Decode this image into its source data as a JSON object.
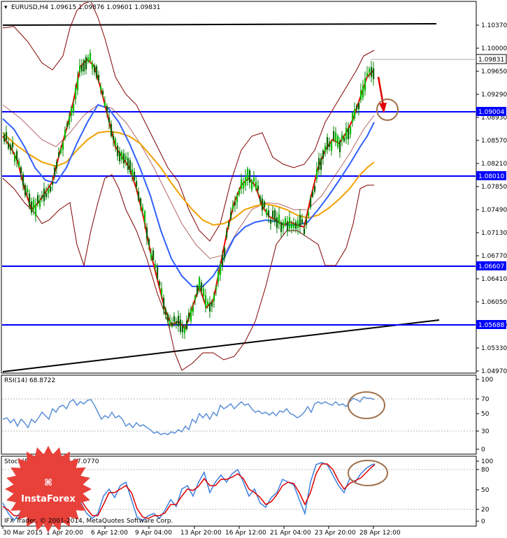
{
  "header": {
    "main": "EURUSD,H4  1.09615 1.09876 1.09601 1.09831",
    "rsi": "RSI(14) 68.8722",
    "stoch": "Stoch(5,3,3) 85.0496 87.0770"
  },
  "price_axis": {
    "ticks": [
      "1.10370",
      "1.10000",
      "1.09650",
      "1.09290",
      "1.08930",
      "1.08570",
      "1.08210",
      "1.07850",
      "1.07490",
      "1.07130",
      "1.06770",
      "1.06410",
      "1.06050",
      "1.05690",
      "1.05330",
      "1.04970"
    ],
    "current_price": "1.09831"
  },
  "levels": [
    {
      "label": "1.09004"
    },
    {
      "label": "1.08010"
    },
    {
      "label": "1.06607"
    },
    {
      "label": "1.05688"
    }
  ],
  "rsi_axis": {
    "ticks": [
      "100",
      "70",
      "50",
      "30",
      "0"
    ]
  },
  "stoch_axis": {
    "ticks": [
      "100",
      "80",
      "50",
      "20",
      "0"
    ]
  },
  "time_axis": {
    "labels": [
      "30 Mar 2015",
      "1 Apr 20:00",
      "6 Apr 12:00",
      "9 Apr 04:00",
      "13 Apr 20:00",
      "16 Apr 12:00",
      "21 Apr 04:00",
      "23 Apr 20:00",
      "28 Apr 12:00"
    ]
  },
  "footer": {
    "copyright": "IFX Trader, © 2001-2014, MetaQuotes Software Corp."
  },
  "logo": {
    "text": "InstaForex"
  },
  "colors": {
    "level_line": "#0000ff",
    "level_tag": "#0000ff",
    "candles": "#00aa00",
    "ma_fast": "#ff0000",
    "ma_mid": "#3060ff",
    "ma_slow": "#f0a000",
    "bands": "#800000",
    "rsi_line": "#5b8fd6",
    "stoch_main": "#3b7fe0",
    "stoch_signal": "#e00000",
    "annotation": "#a0704a",
    "logo_bg": "#e8413a"
  }
}
